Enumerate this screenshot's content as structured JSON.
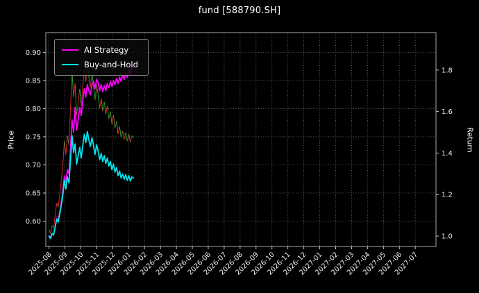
{
  "chart_data": {
    "type": "line",
    "title": "fund [588790.SH]",
    "xlabel": "",
    "ylabel_left": "Price",
    "ylabel_right": "Return",
    "grid": "dotted",
    "background": "#000000",
    "x_tick_labels": [
      "2025-08",
      "2025-09",
      "2025-10",
      "2025-11",
      "2025-12",
      "2026-01",
      "2026-02",
      "2026-03",
      "2026-04",
      "2026-05",
      "2026-06",
      "2026-07",
      "2026-08",
      "2026-09",
      "2026-10",
      "2026-11",
      "2026-12",
      "2027-01",
      "2027-02",
      "2027-03",
      "2027-04",
      "2027-05",
      "2027-06",
      "2027-07"
    ],
    "y_ticks_price": [
      "0.60",
      "0.65",
      "0.70",
      "0.75",
      "0.80",
      "0.85",
      "0.90"
    ],
    "y_ticks_return": [
      "1.0",
      "1.2",
      "1.4",
      "1.6",
      "1.8"
    ],
    "xlim_months": [
      -0.2,
      24.3
    ],
    "ylim_price": [
      0.555,
      0.935
    ],
    "ylim_return": [
      0.95,
      1.98
    ],
    "x_unit": "months since 2025-08",
    "x_range": [
      0,
      5.3
    ],
    "legend": {
      "position": "upper left",
      "items": [
        {
          "label": "AI Strategy",
          "color": "#ff00ff"
        },
        {
          "label": "Buy-and-Hold",
          "color": "#00e5ee"
        }
      ]
    },
    "series": [
      {
        "name": "Fund price",
        "axis": "left",
        "style": "updown",
        "color_up": "#d62728",
        "color_down": "#2ca02c",
        "width": 1,
        "values": [
          0.585,
          0.578,
          0.592,
          0.588,
          0.61,
          0.632,
          0.625,
          0.648,
          0.672,
          0.7,
          0.742,
          0.718,
          0.752,
          0.735,
          0.8,
          0.868,
          0.82,
          0.845,
          0.788,
          0.81,
          0.835,
          0.805,
          0.84,
          0.872,
          0.848,
          0.88,
          0.855,
          0.838,
          0.862,
          0.84,
          0.815,
          0.842,
          0.825,
          0.8,
          0.818,
          0.795,
          0.812,
          0.79,
          0.805,
          0.782,
          0.795,
          0.772,
          0.788,
          0.765,
          0.778,
          0.755,
          0.768,
          0.748,
          0.76,
          0.745,
          0.758,
          0.742,
          0.755,
          0.74,
          0.752,
          0.748
        ]
      },
      {
        "name": "AI Strategy",
        "axis": "right",
        "style": "line",
        "color": "#ff00ff",
        "width": 1.8,
        "values": [
          1.0,
          0.996,
          1.012,
          1.008,
          1.045,
          1.085,
          1.075,
          1.115,
          1.16,
          1.215,
          1.29,
          1.26,
          1.32,
          1.3,
          1.42,
          1.56,
          1.5,
          1.62,
          1.51,
          1.56,
          1.62,
          1.58,
          1.65,
          1.71,
          1.67,
          1.73,
          1.7,
          1.68,
          1.73,
          1.745,
          1.71,
          1.755,
          1.74,
          1.7,
          1.73,
          1.695,
          1.725,
          1.7,
          1.735,
          1.715,
          1.745,
          1.72,
          1.75,
          1.73,
          1.76,
          1.735,
          1.765,
          1.745,
          1.775,
          1.755,
          1.785,
          1.765,
          1.8,
          1.78,
          1.815,
          1.825
        ]
      },
      {
        "name": "Buy-and-Hold",
        "axis": "right",
        "style": "line",
        "color": "#00e5ee",
        "width": 1.8,
        "values": [
          1.0,
          0.988,
          1.012,
          1.005,
          1.043,
          1.08,
          1.068,
          1.108,
          1.149,
          1.197,
          1.268,
          1.227,
          1.285,
          1.256,
          1.368,
          1.484,
          1.402,
          1.444,
          1.347,
          1.385,
          1.427,
          1.376,
          1.436,
          1.491,
          1.45,
          1.504,
          1.462,
          1.432,
          1.474,
          1.436,
          1.393,
          1.439,
          1.41,
          1.368,
          1.398,
          1.359,
          1.388,
          1.35,
          1.376,
          1.337,
          1.359,
          1.32,
          1.347,
          1.308,
          1.33,
          1.291,
          1.313,
          1.279,
          1.299,
          1.274,
          1.296,
          1.268,
          1.291,
          1.265,
          1.285,
          1.279
        ]
      }
    ]
  }
}
